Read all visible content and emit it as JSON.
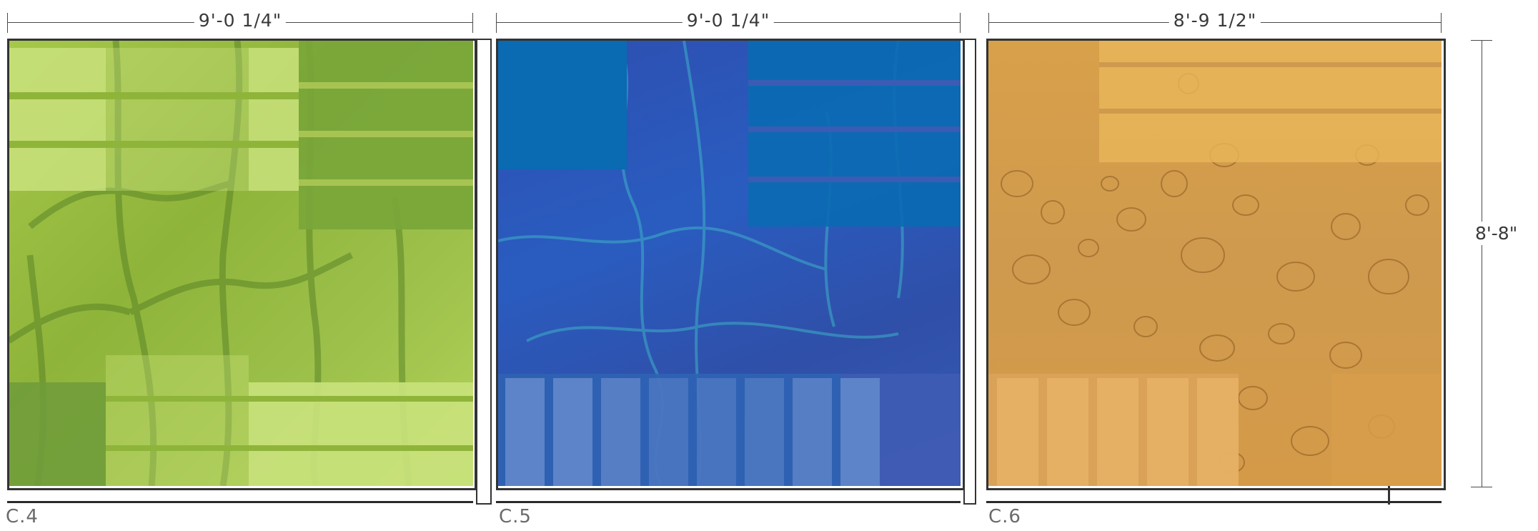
{
  "dimensions": {
    "c4_width": "9'-0 1/4\"",
    "c5_width": "9'-0 1/4\"",
    "c6_width": "8'-9 1/2\"",
    "height": "8'-8\""
  },
  "captions": {
    "c4": "C.4",
    "c5": "C.5",
    "c6": "C.6"
  },
  "colors": {
    "green_base": "#8fb43a",
    "green_light": "#c9e27c",
    "green_dark": "#7aa63a",
    "blue_base": "#2f63b4",
    "blue_bright": "#0a6ab2",
    "blue_light": "#5d84c8",
    "amber_base": "#d9a04a",
    "amber_light": "#e8b65a"
  }
}
